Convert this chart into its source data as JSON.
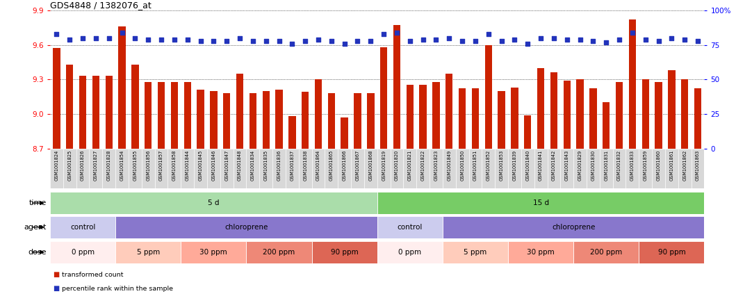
{
  "title": "GDS4848 / 1382076_at",
  "samples": [
    "GSM1001824",
    "GSM1001825",
    "GSM1001826",
    "GSM1001827",
    "GSM1001828",
    "GSM1001854",
    "GSM1001855",
    "GSM1001856",
    "GSM1001857",
    "GSM1001858",
    "GSM1001844",
    "GSM1001845",
    "GSM1001846",
    "GSM1001847",
    "GSM1001848",
    "GSM1001834",
    "GSM1001835",
    "GSM1001836",
    "GSM1001837",
    "GSM1001838",
    "GSM1001864",
    "GSM1001865",
    "GSM1001866",
    "GSM1001867",
    "GSM1001868",
    "GSM1001819",
    "GSM1001820",
    "GSM1001821",
    "GSM1001822",
    "GSM1001823",
    "GSM1001849",
    "GSM1001850",
    "GSM1001851",
    "GSM1001852",
    "GSM1001853",
    "GSM1001839",
    "GSM1001840",
    "GSM1001841",
    "GSM1001842",
    "GSM1001843",
    "GSM1001829",
    "GSM1001830",
    "GSM1001831",
    "GSM1001832",
    "GSM1001833",
    "GSM1001859",
    "GSM1001860",
    "GSM1001861",
    "GSM1001862",
    "GSM1001863"
  ],
  "bar_values": [
    9.57,
    9.43,
    9.33,
    9.33,
    9.33,
    9.76,
    9.43,
    9.28,
    9.28,
    9.28,
    9.28,
    9.21,
    9.2,
    9.18,
    9.35,
    9.18,
    9.2,
    9.21,
    8.98,
    9.19,
    9.3,
    9.18,
    8.97,
    9.18,
    9.18,
    9.58,
    9.77,
    9.25,
    9.25,
    9.28,
    9.35,
    9.22,
    9.22,
    9.6,
    9.2,
    9.23,
    8.99,
    9.4,
    9.36,
    9.29,
    9.3,
    9.22,
    9.1,
    9.28,
    9.82,
    9.3,
    9.28,
    9.38,
    9.3,
    9.22
  ],
  "dot_values": [
    83,
    79,
    80,
    80,
    80,
    84,
    80,
    79,
    79,
    79,
    79,
    78,
    78,
    78,
    80,
    78,
    78,
    78,
    76,
    78,
    79,
    78,
    76,
    78,
    78,
    83,
    84,
    78,
    79,
    79,
    80,
    78,
    78,
    83,
    78,
    79,
    76,
    80,
    80,
    79,
    79,
    78,
    77,
    79,
    84,
    79,
    78,
    80,
    79,
    78
  ],
  "ylim_left": [
    8.7,
    9.9
  ],
  "ylim_right": [
    0,
    100
  ],
  "yticks_left": [
    8.7,
    9.0,
    9.3,
    9.6,
    9.9
  ],
  "yticks_right": [
    0,
    25,
    50,
    75,
    100
  ],
  "bar_color": "#cc2200",
  "dot_color": "#2233bb",
  "xtick_bg": "#cccccc",
  "time_groups": [
    {
      "label": "5 d",
      "start": 0,
      "end": 24,
      "color": "#aaddaa"
    },
    {
      "label": "15 d",
      "start": 25,
      "end": 49,
      "color": "#77cc66"
    }
  ],
  "agent_groups": [
    {
      "label": "control",
      "start": 0,
      "end": 4,
      "color": "#ccccee"
    },
    {
      "label": "chloroprene",
      "start": 5,
      "end": 24,
      "color": "#8877cc"
    },
    {
      "label": "control",
      "start": 25,
      "end": 29,
      "color": "#ccccee"
    },
    {
      "label": "chloroprene",
      "start": 30,
      "end": 49,
      "color": "#8877cc"
    }
  ],
  "dose_groups": [
    {
      "label": "0 ppm",
      "start": 0,
      "end": 4,
      "color": "#ffeeee"
    },
    {
      "label": "5 ppm",
      "start": 5,
      "end": 9,
      "color": "#ffccbb"
    },
    {
      "label": "30 ppm",
      "start": 10,
      "end": 14,
      "color": "#ffaa99"
    },
    {
      "label": "200 ppm",
      "start": 15,
      "end": 19,
      "color": "#ee8877"
    },
    {
      "label": "90 ppm",
      "start": 20,
      "end": 24,
      "color": "#dd6655"
    },
    {
      "label": "0 ppm",
      "start": 25,
      "end": 29,
      "color": "#ffeeee"
    },
    {
      "label": "5 ppm",
      "start": 30,
      "end": 34,
      "color": "#ffccbb"
    },
    {
      "label": "30 ppm",
      "start": 35,
      "end": 39,
      "color": "#ffaa99"
    },
    {
      "label": "200 ppm",
      "start": 40,
      "end": 44,
      "color": "#ee8877"
    },
    {
      "label": "90 ppm",
      "start": 45,
      "end": 49,
      "color": "#dd6655"
    }
  ],
  "row_labels": [
    "time",
    "agent",
    "dose"
  ],
  "legend": [
    {
      "label": "transformed count",
      "color": "#cc2200"
    },
    {
      "label": "percentile rank within the sample",
      "color": "#2233bb"
    }
  ],
  "fig_width": 10.59,
  "fig_height": 4.23,
  "dpi": 100
}
